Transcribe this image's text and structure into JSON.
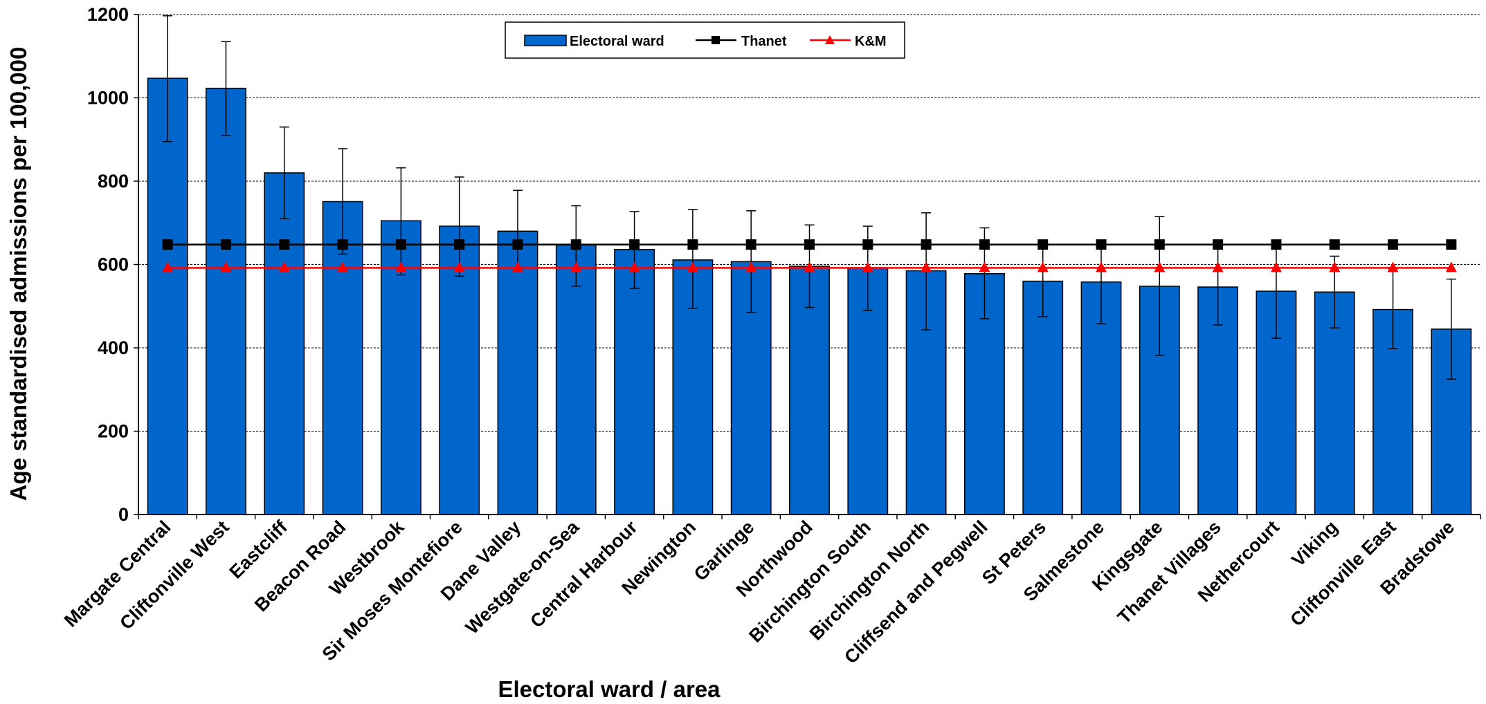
{
  "chart_data": {
    "type": "bar",
    "xlabel": "Electoral ward / area",
    "ylabel": "Age standardised admissions per 100,000",
    "ylim": [
      0,
      1200
    ],
    "yticks": [
      "0",
      "200",
      "400",
      "600",
      "800",
      "1000",
      "1200"
    ],
    "grid": true,
    "legend_position": "top-center",
    "categories": [
      "Margate Central",
      "Cliftonville West",
      "Eastcliff",
      "Beacon Road",
      "Westbrook",
      "Sir Moses Montefiore",
      "Dane Valley",
      "Westgate-on-Sea",
      "Central Harbour",
      "Newington",
      "Garlinge",
      "Northwood",
      "Birchington South",
      "Birchington North",
      "Cliffsend and Pegwell",
      "St Peters",
      "Salmestone",
      "Kingsgate",
      "Thanet Villages",
      "Nethercourt",
      "Viking",
      "Cliftonville East",
      "Bradstowe"
    ],
    "series": [
      {
        "name": "Electoral ward",
        "kind": "bar",
        "color": "#0066CC",
        "values": [
          1047,
          1023,
          820,
          751,
          705,
          692,
          680,
          648,
          636,
          611,
          607,
          596,
          592,
          585,
          578,
          560,
          558,
          548,
          546,
          536,
          534,
          492,
          445
        ],
        "error_low": [
          895,
          910,
          710,
          625,
          575,
          572,
          583,
          548,
          543,
          495,
          485,
          497,
          490,
          443,
          470,
          475,
          458,
          382,
          455,
          423,
          448,
          398,
          325
        ],
        "error_high": [
          1197,
          1135,
          930,
          878,
          832,
          810,
          778,
          741,
          727,
          732,
          729,
          695,
          692,
          724,
          688,
          648,
          648,
          715,
          648,
          648,
          620,
          590,
          565
        ]
      },
      {
        "name": "Thanet",
        "kind": "line",
        "marker": "square",
        "color": "#000000",
        "values": [
          648,
          648,
          648,
          648,
          648,
          648,
          648,
          648,
          648,
          648,
          648,
          648,
          648,
          648,
          648,
          648,
          648,
          648,
          648,
          648,
          648,
          648,
          648
        ]
      },
      {
        "name": "K&M",
        "kind": "line",
        "marker": "triangle",
        "color": "#FF0000",
        "values": [
          592,
          592,
          592,
          592,
          592,
          592,
          592,
          592,
          592,
          592,
          592,
          592,
          592,
          592,
          592,
          592,
          592,
          592,
          592,
          592,
          592,
          592,
          592
        ]
      }
    ]
  }
}
